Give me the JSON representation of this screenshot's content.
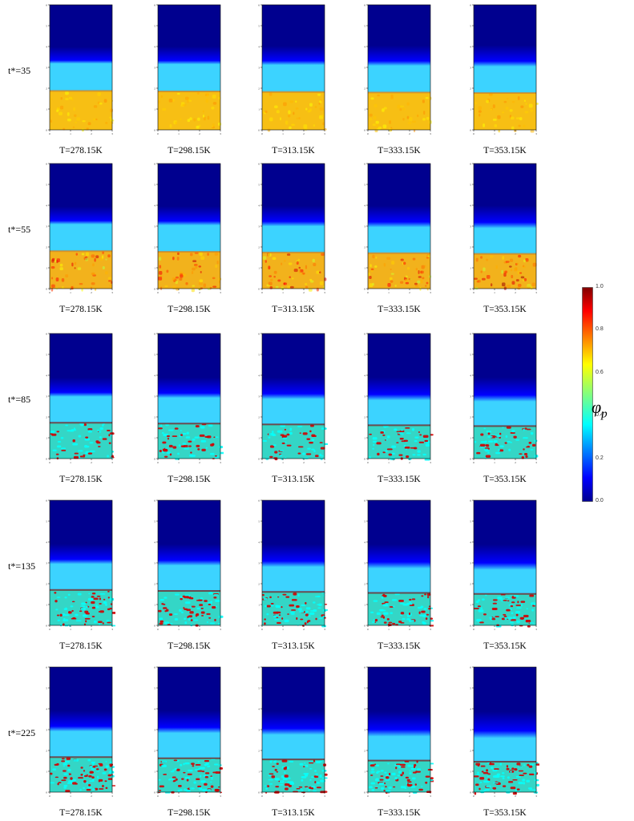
{
  "rows": [
    {
      "label": "t*=35",
      "level": 1.87,
      "stage": 0
    },
    {
      "label": "t*=55",
      "level": 1.8,
      "stage": 1
    },
    {
      "label": "t*=85",
      "level": 1.72,
      "stage": 2
    },
    {
      "label": "t*=135",
      "level": 1.7,
      "stage": 3
    },
    {
      "label": "t*=225",
      "level": 1.68,
      "stage": 4
    }
  ],
  "columns": [
    "T=278.15K",
    "T=298.15K",
    "T=313.15K",
    "T=333.15K",
    "T=353.15K"
  ],
  "axes": {
    "x_ticks": [
      "0",
      "1",
      "2",
      "3"
    ],
    "y_ticks": [
      "0",
      "1",
      "2",
      "3",
      "4",
      "5",
      "6"
    ],
    "x_range": [
      0,
      3
    ],
    "y_range": [
      0,
      6
    ]
  },
  "colorbar": {
    "symbol": "φ",
    "subscript": "p",
    "ticks": [
      "0.0",
      "0.2",
      "0.4",
      "0.6",
      "0.8",
      "1.0"
    ],
    "range": [
      0,
      1
    ],
    "colormap": "jet"
  },
  "colors": {
    "jet_low": "#00008f",
    "jet_high": "#800000"
  }
}
